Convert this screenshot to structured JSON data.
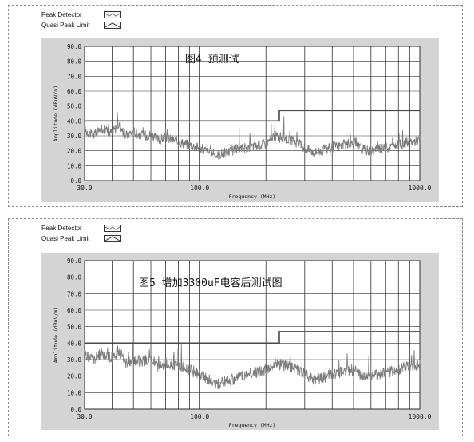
{
  "colors": {
    "plot_bg": "#ffffff",
    "frame_bg": "#d4d4d4",
    "grid": "#333333",
    "detector": "#7c7c7c",
    "limit": "#4a4a4a"
  },
  "charts": [
    {
      "legend": [
        {
          "label": "Peak Detector",
          "icon": "peak-detector-line-icon"
        },
        {
          "label": "Quasi Peak Limit",
          "icon": "quasi-peak-limit-line-icon"
        }
      ],
      "inner_title": "图4  预测试"
    },
    {
      "legend": [
        {
          "label": "Peak Detector",
          "icon": "peak-detector-line-icon"
        },
        {
          "label": "Quasi Peak Limit",
          "icon": "quasi-peak-limit-line-icon"
        }
      ],
      "inner_title": "图5  增加3300uF电容后测试图"
    }
  ],
  "chart_data": [
    {
      "type": "line",
      "title": "图4  预测试",
      "xlabel": "Frequency (MHz)",
      "ylabel": "Amplitude (dBuV/m)",
      "xscale": "log",
      "xlim": [
        30,
        1000
      ],
      "ylim": [
        0,
        90
      ],
      "x_tick_labels": [
        "30.0",
        "100.0",
        "1000.0"
      ],
      "y_tick_labels": [
        "0.0",
        "10.0",
        "20.0",
        "30.0",
        "40.0",
        "50.0",
        "60.0",
        "70.0",
        "80.0",
        "90.0"
      ],
      "grid": true,
      "series": [
        {
          "name": "Peak Detector",
          "x": [
            30,
            33,
            36,
            40,
            43,
            46,
            50,
            55,
            60,
            65,
            70,
            80,
            90,
            100,
            110,
            120,
            140,
            160,
            180,
            200,
            220,
            250,
            280,
            300,
            330,
            360,
            400,
            450,
            500,
            550,
            600,
            700,
            800,
            900,
            1000
          ],
          "y": [
            34,
            30,
            35,
            32,
            38,
            30,
            33,
            30,
            31,
            27,
            29,
            26,
            24,
            22,
            19,
            17,
            20,
            22,
            23,
            25,
            30,
            28,
            25,
            22,
            19,
            20,
            22,
            24,
            25,
            21,
            20,
            22,
            24,
            26,
            27
          ]
        },
        {
          "name": "Quasi Peak Limit",
          "x": [
            30,
            230,
            230,
            1000
          ],
          "y": [
            40,
            40,
            47,
            47
          ]
        }
      ]
    },
    {
      "type": "line",
      "title": "图5  增加3300uF电容后测试图",
      "xlabel": "Frequency (MHz)",
      "ylabel": "Amplitude (dBuV/m)",
      "xscale": "log",
      "xlim": [
        30,
        1000
      ],
      "ylim": [
        0,
        90
      ],
      "x_tick_labels": [
        "30.0",
        "100.0",
        "1000.0"
      ],
      "y_tick_labels": [
        "0.0",
        "10.0",
        "20.0",
        "30.0",
        "40.0",
        "50.0",
        "60.0",
        "70.0",
        "80.0",
        "90.0"
      ],
      "grid": true,
      "series": [
        {
          "name": "Peak Detector",
          "x": [
            30,
            33,
            36,
            40,
            43,
            46,
            50,
            55,
            60,
            65,
            70,
            80,
            90,
            100,
            110,
            120,
            140,
            160,
            180,
            200,
            220,
            250,
            280,
            300,
            330,
            360,
            400,
            450,
            500,
            550,
            600,
            700,
            800,
            900,
            1000
          ],
          "y": [
            33,
            30,
            34,
            31,
            36,
            28,
            30,
            29,
            30,
            26,
            28,
            26,
            24,
            21,
            18,
            15,
            18,
            21,
            22,
            24,
            28,
            26,
            24,
            21,
            18,
            19,
            21,
            23,
            24,
            20,
            20,
            22,
            24,
            26,
            27
          ]
        },
        {
          "name": "Quasi Peak Limit",
          "x": [
            30,
            230,
            230,
            1000
          ],
          "y": [
            40,
            40,
            47,
            47
          ]
        }
      ]
    }
  ]
}
